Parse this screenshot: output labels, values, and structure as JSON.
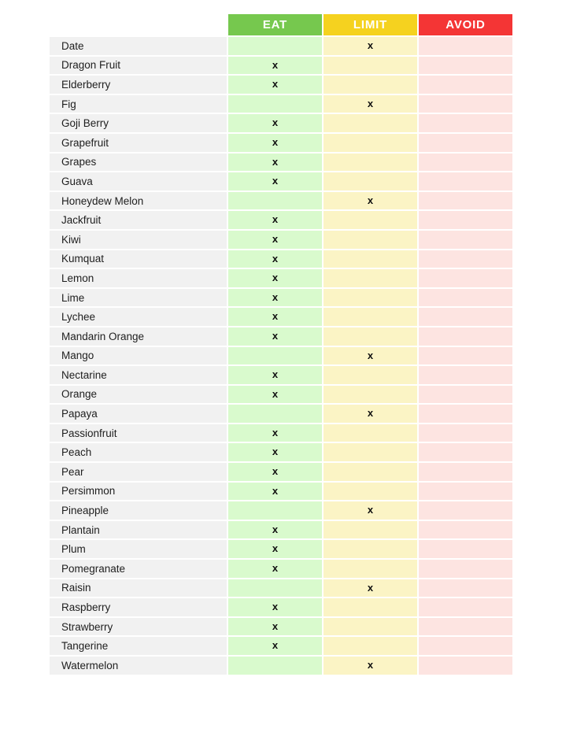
{
  "page": {
    "background_color": "#FFFFFF",
    "text_color": "#1E1E1E"
  },
  "table": {
    "mark": "x",
    "name_cell_color": "#F1F1F1",
    "columns": [
      {
        "label": "EAT",
        "header_color": "#76C84E",
        "cell_color": "#D9FACD"
      },
      {
        "label": "LIMIT",
        "header_color": "#F5D21F",
        "cell_color": "#FBF4C5"
      },
      {
        "label": "AVOID",
        "header_color": "#F43535",
        "cell_color": "#FDE4E1"
      }
    ],
    "rows": [
      {
        "name": "Date",
        "status": "LIMIT"
      },
      {
        "name": "Dragon Fruit",
        "status": "EAT"
      },
      {
        "name": "Elderberry",
        "status": "EAT"
      },
      {
        "name": "Fig",
        "status": "LIMIT"
      },
      {
        "name": "Goji Berry",
        "status": "EAT"
      },
      {
        "name": "Grapefruit",
        "status": "EAT"
      },
      {
        "name": "Grapes",
        "status": "EAT"
      },
      {
        "name": "Guava",
        "status": "EAT"
      },
      {
        "name": "Honeydew Melon",
        "status": "LIMIT"
      },
      {
        "name": "Jackfruit",
        "status": "EAT"
      },
      {
        "name": "Kiwi",
        "status": "EAT"
      },
      {
        "name": "Kumquat",
        "status": "EAT"
      },
      {
        "name": "Lemon",
        "status": "EAT"
      },
      {
        "name": "Lime",
        "status": "EAT"
      },
      {
        "name": "Lychee",
        "status": "EAT"
      },
      {
        "name": "Mandarin Orange",
        "status": "EAT"
      },
      {
        "name": "Mango",
        "status": "LIMIT"
      },
      {
        "name": "Nectarine",
        "status": "EAT"
      },
      {
        "name": "Orange",
        "status": "EAT"
      },
      {
        "name": "Papaya",
        "status": "LIMIT"
      },
      {
        "name": "Passionfruit",
        "status": "EAT"
      },
      {
        "name": "Peach",
        "status": "EAT"
      },
      {
        "name": "Pear",
        "status": "EAT"
      },
      {
        "name": "Persimmon",
        "status": "EAT"
      },
      {
        "name": "Pineapple",
        "status": "LIMIT"
      },
      {
        "name": "Plantain",
        "status": "EAT"
      },
      {
        "name": "Plum",
        "status": "EAT"
      },
      {
        "name": "Pomegranate",
        "status": "EAT"
      },
      {
        "name": "Raisin",
        "status": "LIMIT"
      },
      {
        "name": "Raspberry",
        "status": "EAT"
      },
      {
        "name": "Strawberry",
        "status": "EAT"
      },
      {
        "name": "Tangerine",
        "status": "EAT"
      },
      {
        "name": "Watermelon",
        "status": "LIMIT"
      }
    ]
  }
}
